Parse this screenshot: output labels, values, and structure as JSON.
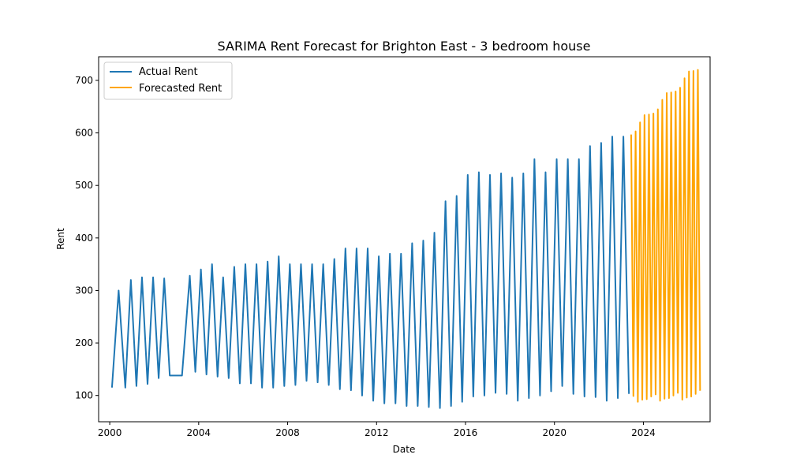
{
  "chart_data": {
    "type": "line",
    "title": "SARIMA Rent Forecast for Brighton East - 3 bedroom house",
    "xlabel": "Date",
    "ylabel": "Rent",
    "xlim": [
      1999.5,
      2027.0
    ],
    "ylim": [
      50,
      745
    ],
    "x_ticks": [
      2000,
      2004,
      2008,
      2012,
      2016,
      2020,
      2024
    ],
    "y_ticks": [
      100,
      200,
      300,
      400,
      500,
      600,
      700
    ],
    "grid": false,
    "legend": {
      "placement": "top-left"
    },
    "series": [
      {
        "name": "Actual Rent",
        "color": "#1f77b4",
        "points": [
          [
            2000.1,
            115
          ],
          [
            2000.4,
            300
          ],
          [
            2000.7,
            115
          ],
          [
            2000.95,
            320
          ],
          [
            2001.2,
            118
          ],
          [
            2001.45,
            325
          ],
          [
            2001.7,
            122
          ],
          [
            2001.95,
            325
          ],
          [
            2002.2,
            133
          ],
          [
            2002.45,
            323
          ],
          [
            2002.7,
            138
          ],
          [
            2003.0,
            138
          ],
          [
            2003.25,
            138
          ],
          [
            2003.6,
            328
          ],
          [
            2003.85,
            145
          ],
          [
            2004.1,
            340
          ],
          [
            2004.35,
            140
          ],
          [
            2004.6,
            350
          ],
          [
            2004.85,
            136
          ],
          [
            2005.1,
            325
          ],
          [
            2005.35,
            133
          ],
          [
            2005.6,
            345
          ],
          [
            2005.85,
            123
          ],
          [
            2006.1,
            350
          ],
          [
            2006.35,
            123
          ],
          [
            2006.6,
            350
          ],
          [
            2006.85,
            115
          ],
          [
            2007.1,
            355
          ],
          [
            2007.35,
            115
          ],
          [
            2007.6,
            365
          ],
          [
            2007.85,
            118
          ],
          [
            2008.1,
            350
          ],
          [
            2008.35,
            120
          ],
          [
            2008.6,
            350
          ],
          [
            2008.85,
            128
          ],
          [
            2009.1,
            350
          ],
          [
            2009.35,
            125
          ],
          [
            2009.6,
            350
          ],
          [
            2009.85,
            120
          ],
          [
            2010.1,
            360
          ],
          [
            2010.35,
            112
          ],
          [
            2010.6,
            380
          ],
          [
            2010.85,
            110
          ],
          [
            2011.1,
            380
          ],
          [
            2011.35,
            100
          ],
          [
            2011.6,
            380
          ],
          [
            2011.85,
            90
          ],
          [
            2012.1,
            365
          ],
          [
            2012.35,
            85
          ],
          [
            2012.6,
            370
          ],
          [
            2012.85,
            85
          ],
          [
            2013.1,
            370
          ],
          [
            2013.35,
            80
          ],
          [
            2013.6,
            390
          ],
          [
            2013.85,
            80
          ],
          [
            2014.1,
            395
          ],
          [
            2014.35,
            78
          ],
          [
            2014.6,
            410
          ],
          [
            2014.85,
            76
          ],
          [
            2015.1,
            470
          ],
          [
            2015.35,
            80
          ],
          [
            2015.6,
            480
          ],
          [
            2015.85,
            88
          ],
          [
            2016.1,
            520
          ],
          [
            2016.35,
            98
          ],
          [
            2016.6,
            525
          ],
          [
            2016.85,
            100
          ],
          [
            2017.1,
            520
          ],
          [
            2017.35,
            105
          ],
          [
            2017.6,
            523
          ],
          [
            2017.85,
            103
          ],
          [
            2018.1,
            515
          ],
          [
            2018.35,
            90
          ],
          [
            2018.6,
            523
          ],
          [
            2018.85,
            95
          ],
          [
            2019.1,
            550
          ],
          [
            2019.35,
            100
          ],
          [
            2019.6,
            525
          ],
          [
            2019.85,
            108
          ],
          [
            2020.1,
            550
          ],
          [
            2020.35,
            118
          ],
          [
            2020.6,
            550
          ],
          [
            2020.85,
            103
          ],
          [
            2021.1,
            550
          ],
          [
            2021.35,
            98
          ],
          [
            2021.6,
            575
          ],
          [
            2021.85,
            97
          ],
          [
            2022.1,
            581
          ],
          [
            2022.35,
            90
          ],
          [
            2022.6,
            593
          ],
          [
            2022.85,
            95
          ],
          [
            2023.1,
            593
          ],
          [
            2023.35,
            103
          ]
        ]
      },
      {
        "name": "Forecasted Rent",
        "color": "#ffa500",
        "points": [
          [
            2023.45,
            597
          ],
          [
            2023.55,
            99
          ],
          [
            2023.65,
            603
          ],
          [
            2023.75,
            88
          ],
          [
            2023.85,
            620
          ],
          [
            2023.95,
            92
          ],
          [
            2024.05,
            634
          ],
          [
            2024.15,
            93
          ],
          [
            2024.25,
            635
          ],
          [
            2024.35,
            98
          ],
          [
            2024.45,
            637
          ],
          [
            2024.55,
            102
          ],
          [
            2024.65,
            645
          ],
          [
            2024.75,
            90
          ],
          [
            2024.85,
            663
          ],
          [
            2024.95,
            94
          ],
          [
            2025.05,
            676
          ],
          [
            2025.15,
            95
          ],
          [
            2025.25,
            677
          ],
          [
            2025.35,
            100
          ],
          [
            2025.45,
            679
          ],
          [
            2025.55,
            105
          ],
          [
            2025.65,
            686
          ],
          [
            2025.75,
            92
          ],
          [
            2025.85,
            704
          ],
          [
            2025.95,
            96
          ],
          [
            2026.05,
            717
          ],
          [
            2026.15,
            98
          ],
          [
            2026.25,
            718
          ],
          [
            2026.35,
            103
          ],
          [
            2026.45,
            720
          ],
          [
            2026.55,
            109
          ]
        ]
      }
    ]
  }
}
